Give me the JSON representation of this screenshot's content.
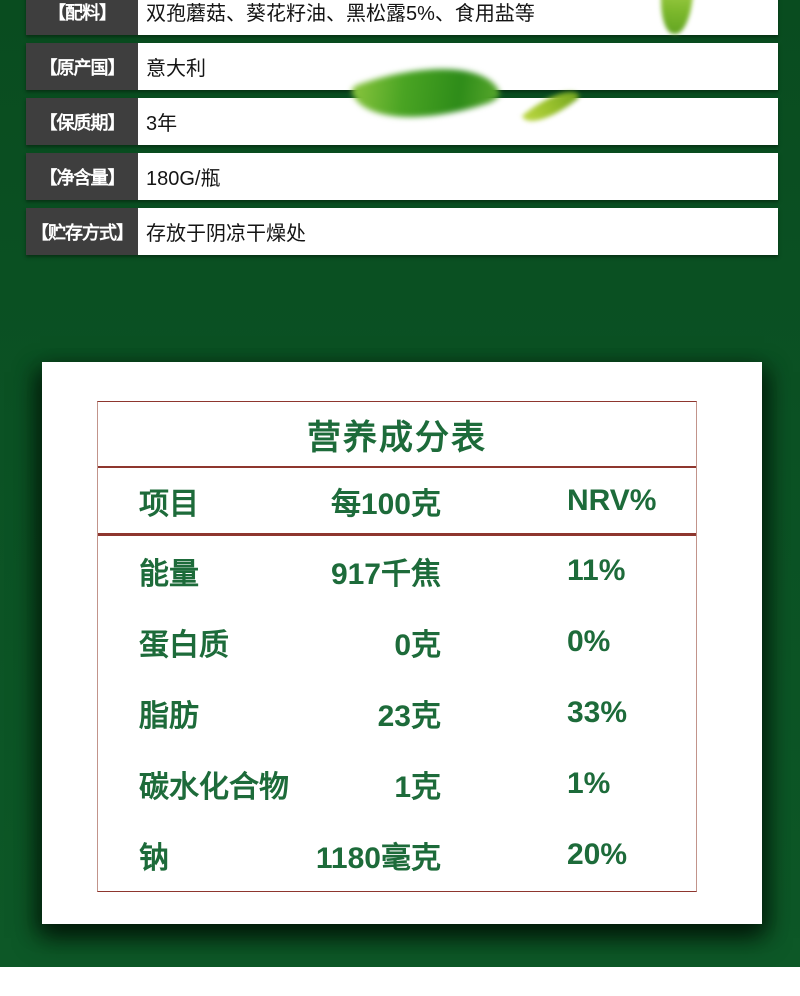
{
  "page": {
    "background_green": "#0b5224",
    "label_box_color": "#3e3e3e",
    "table_text_green": "#1d6b3a",
    "table_border_red": "#8e362e"
  },
  "info_rows": [
    {
      "label": "【配料】",
      "value": "双孢蘑菇、葵花籽油、黑松露5%、食用盐等"
    },
    {
      "label": "【原产国】",
      "value": "意大利"
    },
    {
      "label": "【保质期】",
      "value": "3年"
    },
    {
      "label": "【净含量】",
      "value": "180G/瓶"
    },
    {
      "label": "【贮存方式】",
      "value": "存放于阴凉干燥处"
    }
  ],
  "decorations": {
    "leaves": [
      "large-blurred-leaf",
      "small-blurred-leaf",
      "top-right-leaf"
    ]
  },
  "nutrition_table": {
    "title": "营养成分表",
    "headers": [
      "项目",
      "每100克",
      "NRV%"
    ],
    "rows": [
      {
        "item": "能量",
        "per_100g": "917千焦",
        "nrv": "11%"
      },
      {
        "item": "蛋白质",
        "per_100g": "0克",
        "nrv": "0%"
      },
      {
        "item": "脂肪",
        "per_100g": "23克",
        "nrv": "33%"
      },
      {
        "item": "碳水化合物",
        "per_100g": "1克",
        "nrv": "1%"
      },
      {
        "item": "钠",
        "per_100g": "1180毫克",
        "nrv": "20%"
      }
    ]
  }
}
